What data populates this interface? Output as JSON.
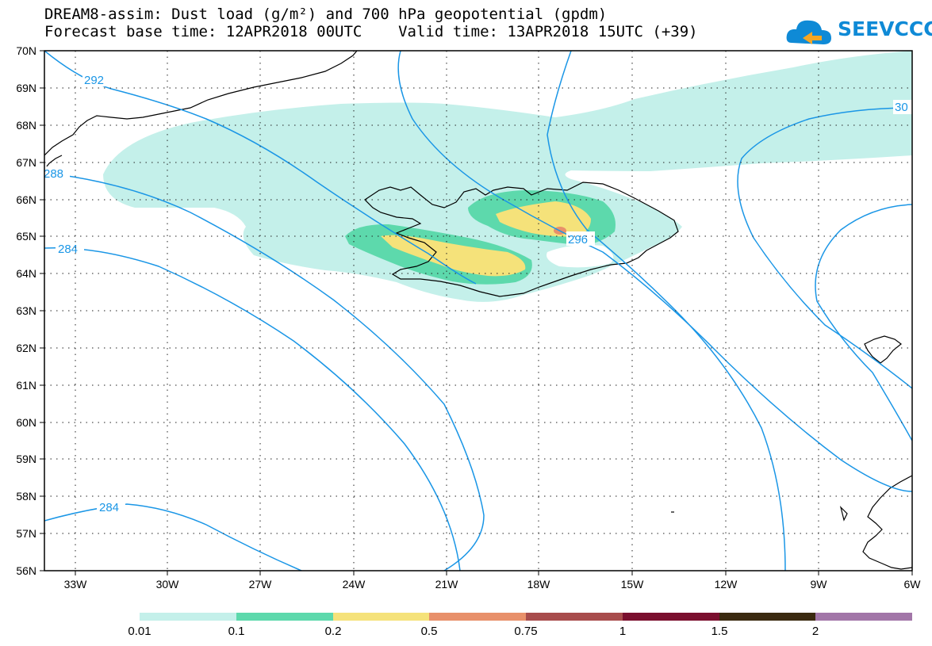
{
  "title_line1": "DREAM8-assim: Dust load (g/m²) and 700 hPa geopotential (gpdm)",
  "title_line2": "Forecast base time: 12APR2018 00UTC    Valid time: 13APR2018 15UTC (+39)",
  "logo_text": "SEEVCCC",
  "lat_labels": [
    "70N",
    "69N",
    "68N",
    "67N",
    "66N",
    "65N",
    "64N",
    "63N",
    "62N",
    "61N",
    "60N",
    "59N",
    "58N",
    "57N",
    "56N"
  ],
  "lon_labels": [
    "33W",
    "30W",
    "27W",
    "24W",
    "21W",
    "18W",
    "15W",
    "12W",
    "9W",
    "6W"
  ],
  "contour_labels": [
    "292",
    "288",
    "284",
    "284",
    "296",
    "30"
  ],
  "colorbar": {
    "colors": [
      "#c4f0ea",
      "#5dd9ac",
      "#f5e27a",
      "#e8906a",
      "#a84c4c",
      "#7a0f2e",
      "#3b2a10",
      "#a276a8"
    ],
    "labels": [
      "0.01",
      "0.1",
      "0.2",
      "0.5",
      "0.75",
      "1",
      "1.5",
      "2"
    ]
  }
}
